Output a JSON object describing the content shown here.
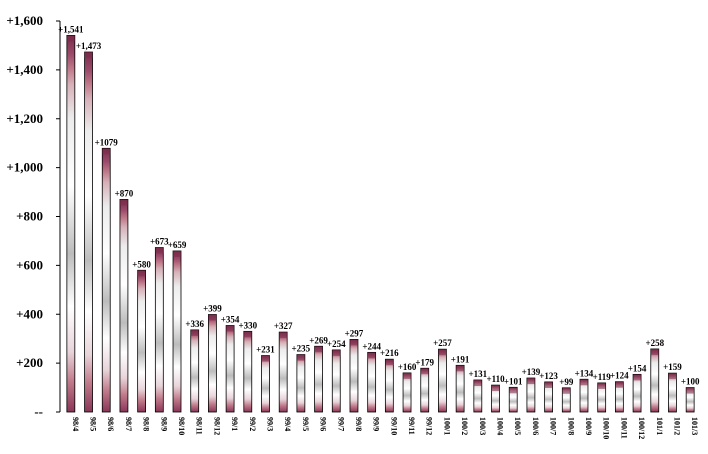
{
  "chart_data": {
    "type": "bar",
    "categories": [
      "98/4",
      "98/5",
      "98/6",
      "98/7",
      "98/8",
      "98/9",
      "98/10",
      "98/11",
      "98/12",
      "99/1",
      "99/2",
      "99/3",
      "99/4",
      "99/5",
      "99/6",
      "99/7",
      "99/8",
      "99/9",
      "99/10",
      "99/11",
      "99/12",
      "100/1",
      "100/2",
      "100/3",
      "100/4",
      "100/5",
      "100/6",
      "100/7",
      "100/8",
      "100/9",
      "100/10",
      "100/11",
      "100/12",
      "101/1",
      "101/2",
      "101/3"
    ],
    "values": [
      1541,
      1473,
      1079,
      870,
      580,
      673,
      659,
      336,
      399,
      354,
      330,
      231,
      327,
      235,
      269,
      254,
      297,
      244,
      216,
      160,
      179,
      257,
      191,
      131,
      110,
      101,
      139,
      123,
      99,
      134,
      119,
      124,
      154,
      258,
      159,
      100
    ],
    "data_labels": [
      "+1,541",
      "+1,473",
      "+1079",
      "+870",
      "+580",
      "+673",
      "+659",
      "+336",
      "+399",
      "+354",
      "+330",
      "+231",
      "+327",
      "+235",
      "+269",
      "+254",
      "+297",
      "+244",
      "+216",
      "+160",
      "+179",
      "+257",
      "+191",
      "+131",
      "+110",
      "+101",
      "+139",
      "+123",
      "+99",
      "+134",
      "+119",
      "+124",
      "+154",
      "+258",
      "+159",
      "+100"
    ],
    "ylim": [
      0,
      1600
    ],
    "yticks": [
      0,
      200,
      400,
      600,
      800,
      1000,
      1200,
      1400,
      1600
    ],
    "ytick_labels": [
      "--",
      "+200",
      "+400",
      "+600",
      "+800",
      "+1,000",
      "+1,200",
      "+1,400",
      "+1,600"
    ],
    "grid": false,
    "legend": "none",
    "colors": {
      "bar_edge": "#000000",
      "band_top": "#7a2b4a",
      "band_mid": "#c07a8a",
      "body": "#ffffff",
      "shade": "#b8b8b8"
    }
  }
}
